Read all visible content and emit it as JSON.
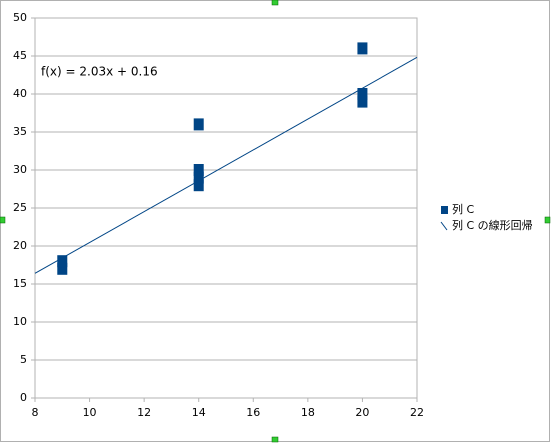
{
  "chart_data": {
    "type": "scatter",
    "series": [
      {
        "name": "列 C",
        "color": "#004586",
        "x": [
          9,
          9,
          14,
          14,
          14,
          14,
          20,
          20,
          20
        ],
        "values": [
          17,
          18,
          28,
          29,
          30,
          36,
          39,
          40,
          46
        ]
      }
    ],
    "trendline": {
      "name": "列 C の線形回帰",
      "color": "#004586",
      "slope": 2.03,
      "intercept": 0.16,
      "label": "f(x) = 2.03x + 0.16"
    },
    "xlim": [
      8,
      22
    ],
    "xticks": [
      8,
      10,
      12,
      14,
      16,
      18,
      20,
      22
    ],
    "ylim": [
      0,
      50
    ],
    "yticks": [
      0,
      5,
      10,
      15,
      20,
      25,
      30,
      35,
      40,
      45,
      50
    ],
    "grid": true,
    "legend": "right"
  }
}
